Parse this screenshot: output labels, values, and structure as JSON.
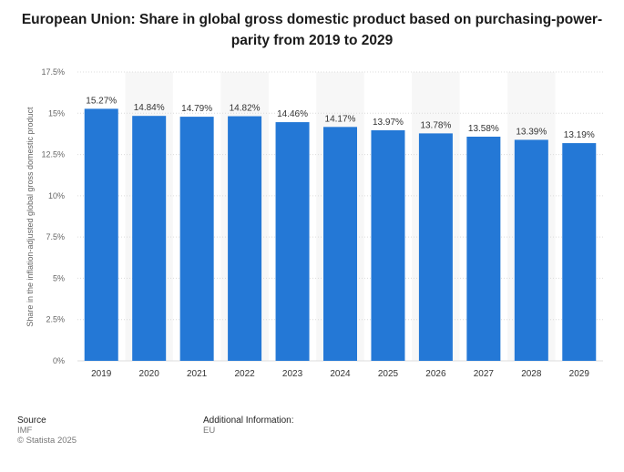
{
  "chart_data": {
    "type": "bar",
    "title": "European Union: Share in global gross domestic product based on purchasing-power-parity from 2019 to 2029",
    "ylabel": "Share in the inflation-adjusted global gross domestic product",
    "xlabel": "",
    "categories": [
      "2019",
      "2020",
      "2021",
      "2022",
      "2023",
      "2024",
      "2025",
      "2026",
      "2027",
      "2028",
      "2029"
    ],
    "values": [
      15.27,
      14.84,
      14.79,
      14.82,
      14.46,
      14.17,
      13.97,
      13.78,
      13.58,
      13.39,
      13.19
    ],
    "value_labels": [
      "15.27%",
      "14.84%",
      "14.79%",
      "14.82%",
      "14.46%",
      "14.17%",
      "13.97%",
      "13.78%",
      "13.58%",
      "13.39%",
      "13.19%"
    ],
    "ylim": [
      0,
      17.5
    ],
    "yticks": [
      0,
      2.5,
      5,
      7.5,
      10,
      12.5,
      15,
      17.5
    ],
    "ytick_labels": [
      "0%",
      "2.5%",
      "5%",
      "7.5%",
      "10%",
      "12.5%",
      "15%",
      "17.5%"
    ],
    "grid": true,
    "bar_color": "#2478d6"
  },
  "footer": {
    "source_heading": "Source",
    "source_lines": [
      "IMF",
      "© Statista 2025"
    ],
    "additional_heading": "Additional Information:",
    "additional_lines": [
      "EU"
    ]
  }
}
